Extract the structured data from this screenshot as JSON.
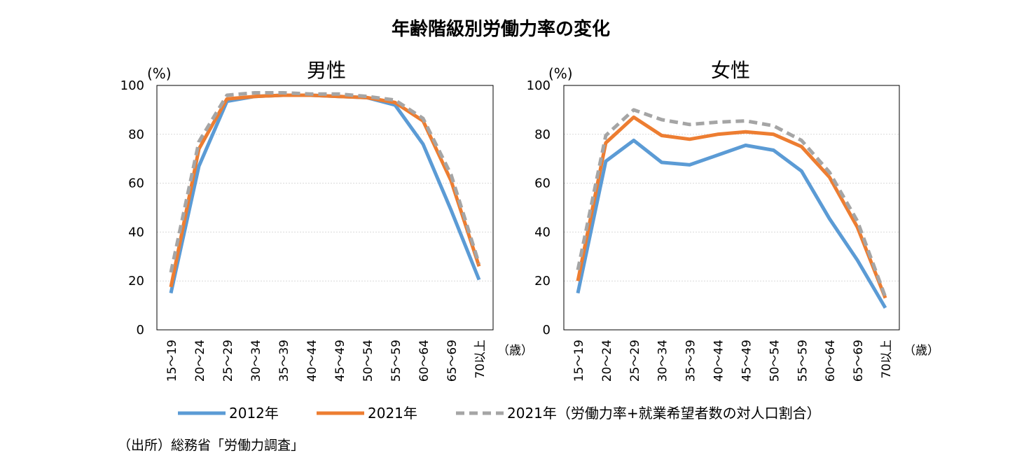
{
  "figure": {
    "title": "年齢階級別労働力率の変化",
    "source": "（出所）総務省「労働力調査」"
  },
  "colors": {
    "s2012": "#5b9bd5",
    "s2021": "#ed7d31",
    "s2021plus": "#a5a5a5",
    "axis": "#000000",
    "grid": "#d9d9d9"
  },
  "legend": {
    "items": [
      {
        "label": "2012年",
        "style": "solid",
        "color": "#5b9bd5"
      },
      {
        "label": "2021年",
        "style": "solid",
        "color": "#ed7d31"
      },
      {
        "label": "2021年（労働力率+就業希望者数の対人口割合）",
        "style": "dashed",
        "color": "#a5a5a5"
      }
    ]
  },
  "chart_data": [
    {
      "type": "line",
      "title": "男性",
      "ylabel": "(%)",
      "xunit": "（歳）",
      "ylim": [
        0,
        100
      ],
      "yticks": [
        0,
        20,
        40,
        60,
        80,
        100
      ],
      "grid": true,
      "categories": [
        "15～19",
        "20～24",
        "25～29",
        "30～34",
        "35～39",
        "40～44",
        "45～49",
        "50～54",
        "55～59",
        "60～64",
        "65～69",
        "70以上"
      ],
      "series": [
        {
          "name": "2012年",
          "style": "solid",
          "values": [
            15,
            67,
            93.5,
            95.5,
            96,
            96,
            95.5,
            95,
            92,
            76,
            49,
            20.5
          ]
        },
        {
          "name": "2021年",
          "style": "solid",
          "values": [
            17.5,
            74,
            94.5,
            95.5,
            96,
            96,
            95.5,
            95,
            93,
            85.5,
            61,
            26
          ]
        },
        {
          "name": "2021年（労働力率+就業希望者数の対人口割合）",
          "style": "dashed",
          "values": [
            23.5,
            77,
            96,
            97,
            97,
            96.5,
            96.5,
            95.5,
            94,
            86.5,
            63.5,
            27
          ]
        }
      ]
    },
    {
      "type": "line",
      "title": "女性",
      "ylabel": "(%)",
      "xunit": "（歳）",
      "ylim": [
        0,
        100
      ],
      "yticks": [
        0,
        20,
        40,
        60,
        80,
        100
      ],
      "grid": true,
      "categories": [
        "15～19",
        "20～24",
        "25～29",
        "30～34",
        "35～39",
        "40～44",
        "45～49",
        "50～54",
        "55～59",
        "60～64",
        "65～69",
        "70以上"
      ],
      "series": [
        {
          "name": "2012年",
          "style": "solid",
          "values": [
            15,
            69,
            77.5,
            68.5,
            67.5,
            71.5,
            75.5,
            73.5,
            65,
            45.5,
            28.5,
            9
          ]
        },
        {
          "name": "2021年",
          "style": "solid",
          "values": [
            20,
            76.5,
            87,
            79.5,
            78,
            80,
            81,
            80,
            75,
            62.5,
            42,
            13
          ]
        },
        {
          "name": "2021年（労働力率+就業希望者数の対人口割合）",
          "style": "dashed",
          "values": [
            24.5,
            79.5,
            90,
            86,
            84,
            85,
            85.5,
            83.5,
            77.5,
            64.5,
            44.5,
            13.5
          ]
        }
      ]
    }
  ]
}
